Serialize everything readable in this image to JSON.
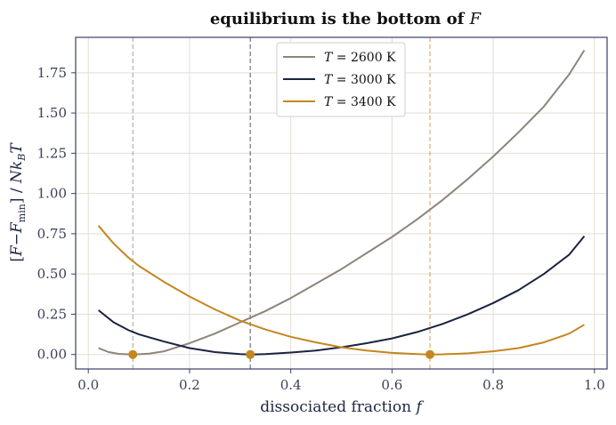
{
  "chart_data": {
    "type": "line",
    "title_text": "equilibrium is the bottom of ",
    "title_var": "F",
    "xlabel_text": "dissociated fraction ",
    "xlabel_var": "f",
    "ylabel": "[F − F_min] / N k_B T",
    "ylabel_parts": {
      "open": "[",
      "F": "F",
      "minus": "−",
      "F2": "F",
      "sub": "min",
      "close": "]",
      "slash": " / ",
      "N": "N",
      "k": "k",
      "B": "B",
      "T": "T"
    },
    "xlim": [
      -0.025,
      1.025
    ],
    "ylim": [
      -0.09,
      1.97
    ],
    "xticks": [
      {
        "value": 0.0,
        "label": "0.0"
      },
      {
        "value": 0.2,
        "label": "0.2"
      },
      {
        "value": 0.4,
        "label": "0.4"
      },
      {
        "value": 0.6,
        "label": "0.6"
      },
      {
        "value": 0.8,
        "label": "0.8"
      },
      {
        "value": 1.0,
        "label": "1.0"
      }
    ],
    "yticks": [
      {
        "value": 0.0,
        "label": "0.00"
      },
      {
        "value": 0.25,
        "label": "0.25"
      },
      {
        "value": 0.5,
        "label": "0.50"
      },
      {
        "value": 0.75,
        "label": "0.75"
      },
      {
        "value": 1.0,
        "label": "1.00"
      },
      {
        "value": 1.25,
        "label": "1.25"
      },
      {
        "value": 1.5,
        "label": "1.50"
      },
      {
        "value": 1.75,
        "label": "1.75"
      }
    ],
    "grid": true,
    "legend_position": "top-center",
    "series": [
      {
        "name": "T = 2600 K",
        "label_var": "T",
        "label_rest": " = 2600 K",
        "color": "#8c857a",
        "equilibrium_f": 0.088,
        "x": [
          0.02,
          0.04,
          0.06,
          0.088,
          0.12,
          0.15,
          0.2,
          0.25,
          0.3,
          0.35,
          0.4,
          0.45,
          0.5,
          0.55,
          0.6,
          0.65,
          0.7,
          0.75,
          0.8,
          0.85,
          0.9,
          0.95,
          0.98
        ],
        "y": [
          0.04,
          0.015,
          0.004,
          0.0,
          0.005,
          0.02,
          0.07,
          0.13,
          0.2,
          0.27,
          0.35,
          0.44,
          0.53,
          0.63,
          0.73,
          0.84,
          0.96,
          1.09,
          1.23,
          1.38,
          1.54,
          1.74,
          1.89
        ]
      },
      {
        "name": "T = 3000 K",
        "label_var": "T",
        "label_rest": " = 3000 K",
        "color": "#1a2340",
        "equilibrium_f": 0.32,
        "x": [
          0.02,
          0.05,
          0.08,
          0.1,
          0.15,
          0.2,
          0.25,
          0.3,
          0.32,
          0.35,
          0.4,
          0.45,
          0.5,
          0.55,
          0.6,
          0.65,
          0.7,
          0.75,
          0.8,
          0.85,
          0.9,
          0.95,
          0.98
        ],
        "y": [
          0.275,
          0.2,
          0.15,
          0.125,
          0.08,
          0.04,
          0.015,
          0.002,
          0.0,
          0.002,
          0.012,
          0.025,
          0.045,
          0.07,
          0.1,
          0.14,
          0.19,
          0.25,
          0.32,
          0.4,
          0.5,
          0.62,
          0.735
        ]
      },
      {
        "name": "T = 3400 K",
        "label_var": "T",
        "label_rest": " = 3400 K",
        "color": "#c4861e",
        "equilibrium_f": 0.675,
        "x": [
          0.02,
          0.05,
          0.08,
          0.1,
          0.15,
          0.2,
          0.25,
          0.3,
          0.35,
          0.4,
          0.45,
          0.5,
          0.55,
          0.6,
          0.65,
          0.675,
          0.7,
          0.75,
          0.8,
          0.85,
          0.9,
          0.95,
          0.98
        ],
        "y": [
          0.8,
          0.69,
          0.6,
          0.55,
          0.45,
          0.36,
          0.28,
          0.21,
          0.155,
          0.11,
          0.075,
          0.045,
          0.025,
          0.01,
          0.002,
          0.0,
          0.001,
          0.007,
          0.02,
          0.04,
          0.075,
          0.13,
          0.185
        ]
      }
    ],
    "equilibrium_points": [
      {
        "x": 0.088,
        "y": 0.0
      },
      {
        "x": 0.32,
        "y": 0.0
      },
      {
        "x": 0.675,
        "y": 0.0
      }
    ],
    "marker_color": "#c4861e",
    "axis_color": "#3a4068",
    "grid_color": "#e3ddd3"
  }
}
